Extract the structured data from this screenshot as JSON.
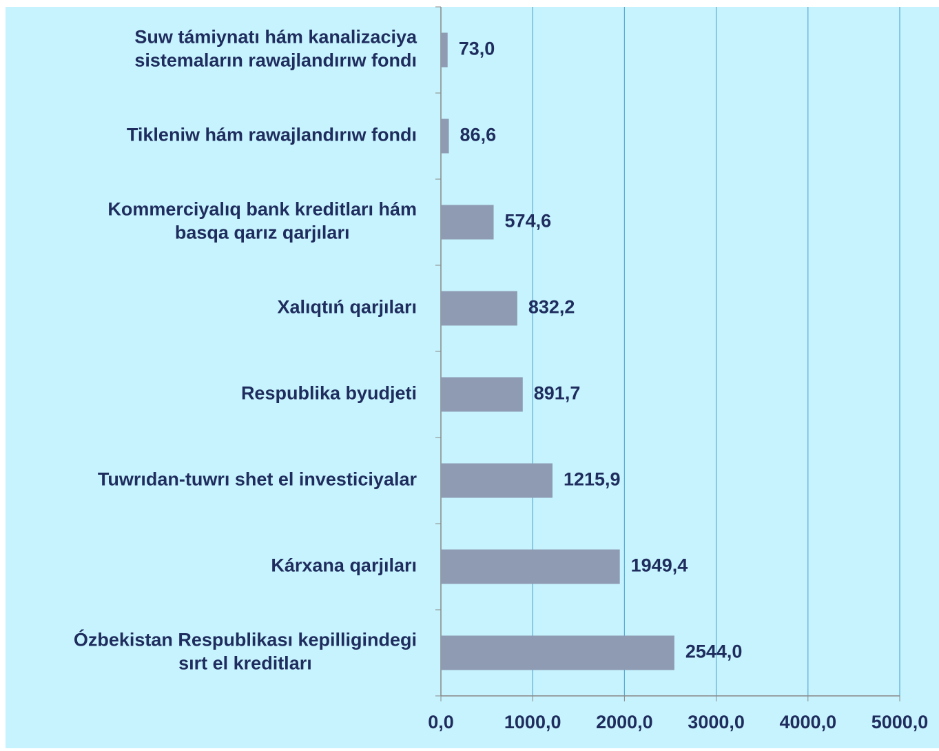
{
  "chart_data": {
    "type": "barh",
    "categories": [
      [
        "Suw támiynatı hám kanalizaciya",
        "sistemaların rawajlandırıw fondı"
      ],
      [
        "Tikleniw hám rawajlandırıw fondı"
      ],
      [
        "Kommerciyalıq bank kreditları  hám",
        "basqa qarız qarjıları"
      ],
      [
        "Xalıqtıń qarjıları"
      ],
      [
        "Respublika byudjeti"
      ],
      [
        "Tuwrıdan-tuwrı shet el investiciyalar"
      ],
      [
        "Kárxana qarjıları"
      ],
      [
        "Ózbekistan Respublikası kepilligindegi",
        "sırt  el kreditları"
      ]
    ],
    "values": [
      73.0,
      86.6,
      574.6,
      832.2,
      891.7,
      1215.9,
      1949.4,
      2544.0
    ],
    "value_labels": [
      "73,0",
      "86,6",
      "574,6",
      "832,2",
      "891,7",
      "1215,9",
      "1949,4",
      "2544,0"
    ],
    "color": "#8e9bb3",
    "xlim": [
      0,
      5000
    ],
    "xticks": [
      {
        "value": 0,
        "label": "0,0"
      },
      {
        "value": 1000,
        "label": "1000,0"
      },
      {
        "value": 2000,
        "label": "2000,0"
      },
      {
        "value": 3000,
        "label": "3000,0"
      },
      {
        "value": 4000,
        "label": "4000,0"
      },
      {
        "value": 5000,
        "label": "5000,0"
      }
    ],
    "grid": true
  }
}
